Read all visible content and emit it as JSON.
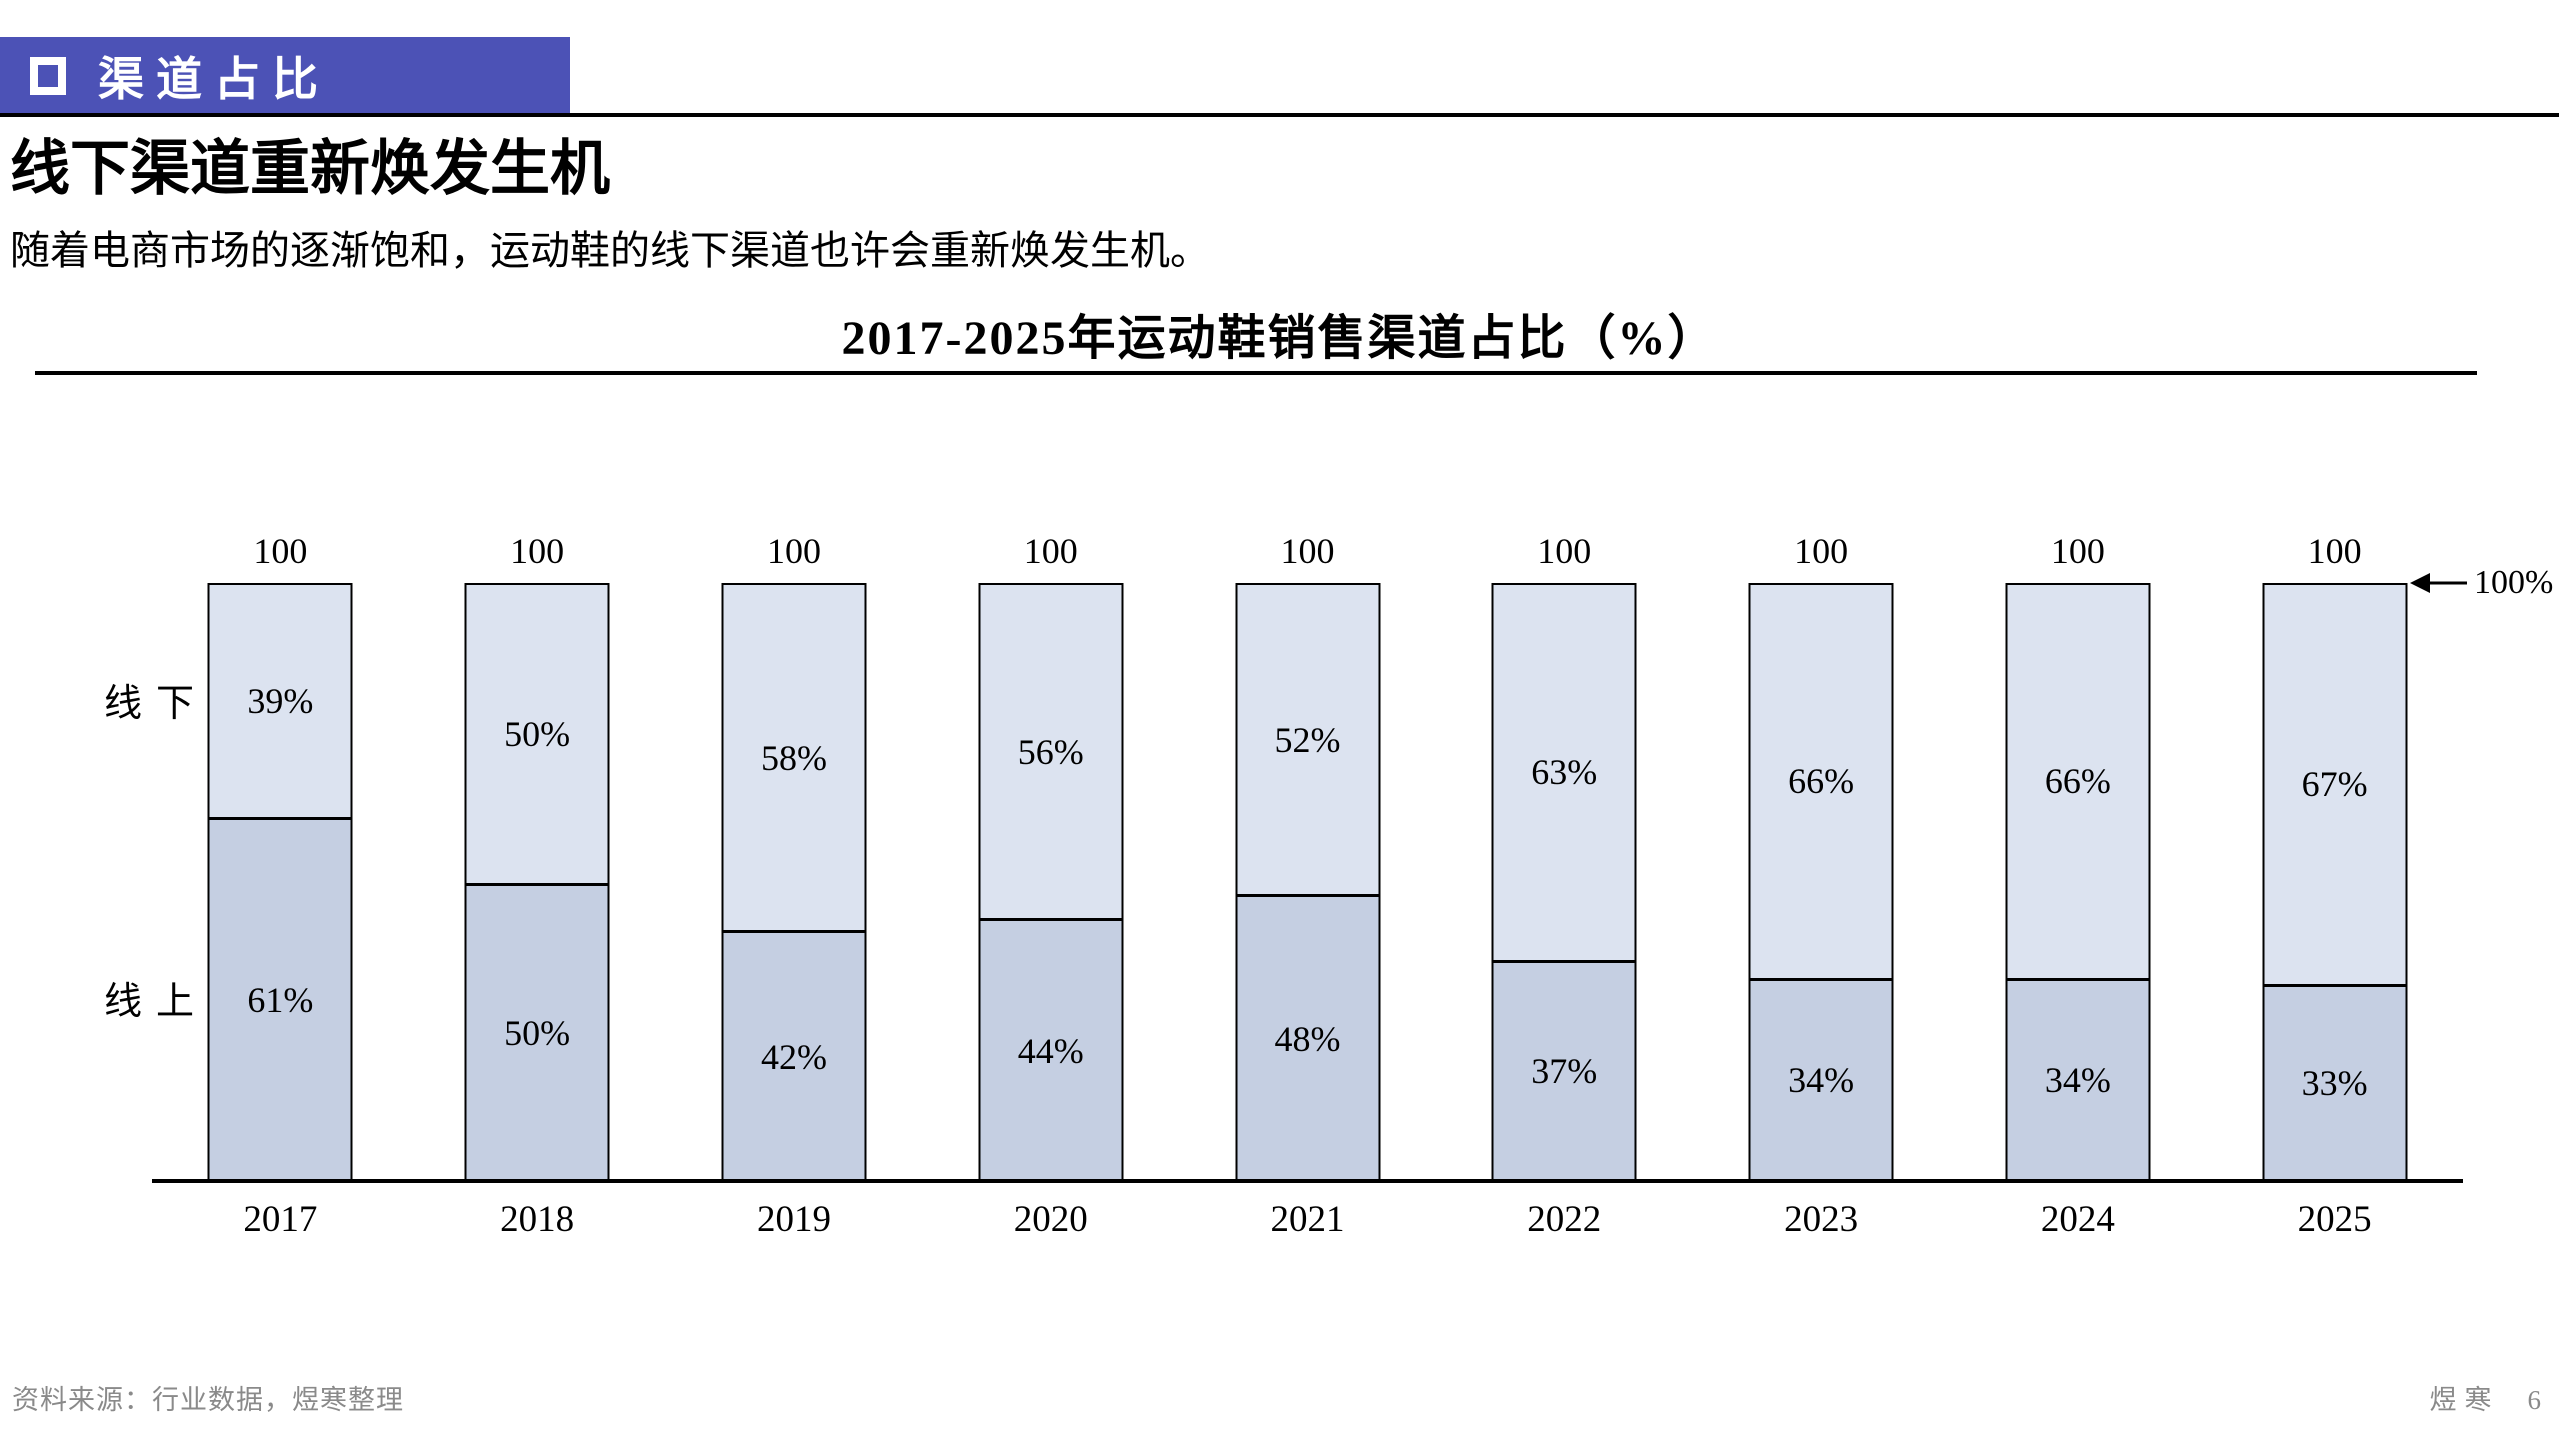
{
  "header": {
    "banner_label": "渠道占比"
  },
  "page": {
    "title": "线下渠道重新焕发生机",
    "subtitle": "随着电商市场的逐渐饱和，运动鞋的线下渠道也许会重新焕发生机。"
  },
  "chart_data": {
    "type": "bar",
    "stacked": true,
    "title": "2017-2025年运动鞋销售渠道占比（%）",
    "categories": [
      "2017",
      "2018",
      "2019",
      "2020",
      "2021",
      "2022",
      "2023",
      "2024",
      "2025"
    ],
    "series": [
      {
        "name": "线上",
        "color": "#c5cfe2",
        "values": [
          61,
          50,
          42,
          44,
          48,
          37,
          34,
          34,
          33
        ]
      },
      {
        "name": "线下",
        "color": "#dce3f0",
        "values": [
          39,
          50,
          58,
          56,
          52,
          63,
          66,
          66,
          67
        ]
      }
    ],
    "totals": [
      100,
      100,
      100,
      100,
      100,
      100,
      100,
      100,
      100
    ],
    "total_label": "100",
    "value_suffix": "%",
    "ylim": [
      0,
      100
    ],
    "annotation": "100%",
    "legend_position": "left-of-first-bar",
    "grid": false
  },
  "footer": {
    "source": "资料来源：行业数据，煜寒整理",
    "brand": "煜寒",
    "page_number": "6"
  }
}
